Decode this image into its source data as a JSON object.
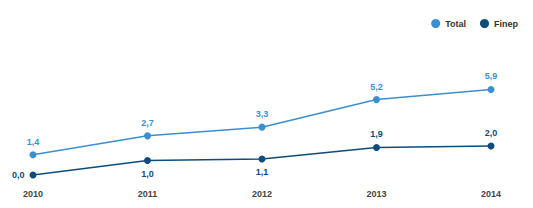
{
  "chart_data": {
    "type": "line",
    "categories": [
      "2010",
      "2011",
      "2012",
      "2013",
      "2014"
    ],
    "series": [
      {
        "name": "Total",
        "color": "#3a8fd1",
        "values": [
          1.4,
          2.7,
          3.3,
          5.2,
          5.9
        ],
        "value_labels": [
          "1,4",
          "2,7",
          "3,3",
          "5,2",
          "5,9"
        ]
      },
      {
        "name": "Finep",
        "color": "#0e4c7c",
        "values": [
          0.0,
          1.0,
          1.1,
          1.9,
          2.0
        ],
        "value_labels": [
          "0,0",
          "1,0",
          "1,1",
          "1,9",
          "2,0"
        ]
      }
    ],
    "ylim": [
      0,
      10
    ],
    "grid": false,
    "legend": "top-right",
    "data_labels": true,
    "tick_labels": "x",
    "marker": "circle"
  }
}
